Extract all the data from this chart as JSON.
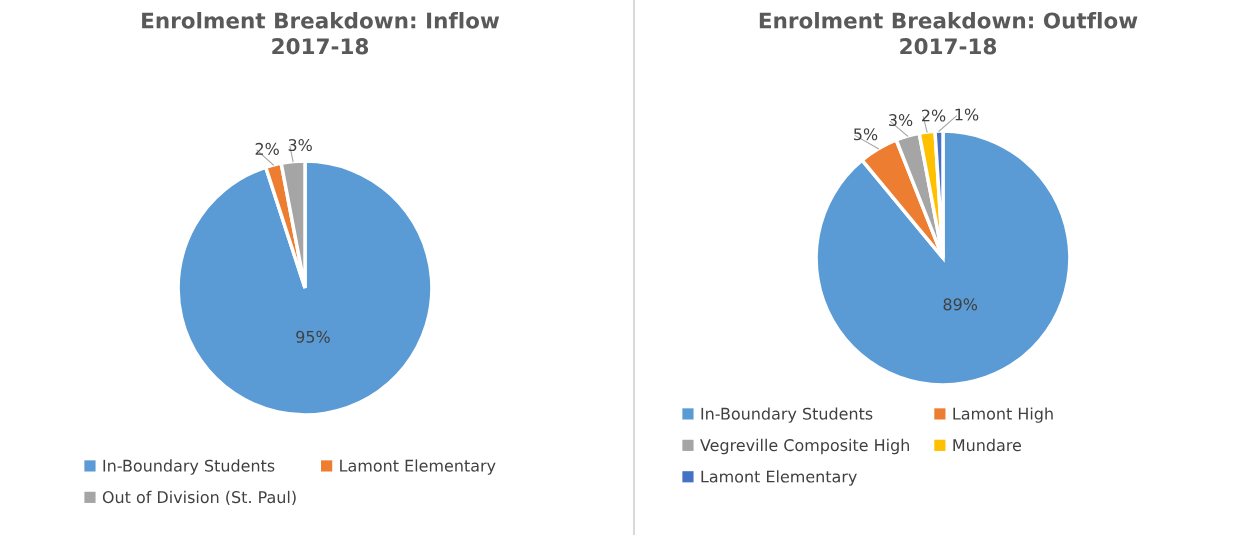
{
  "chart_data": [
    {
      "type": "pie",
      "title": "Enrolment Breakdown: Inflow\n2017-18",
      "categories": [
        "In-Boundary Students",
        "Lamont Elementary",
        "Out of Division (St. Paul)"
      ],
      "values": [
        95,
        2,
        3
      ],
      "value_labels": [
        "95%",
        "2%",
        "3%"
      ],
      "colors": [
        "#5b9bd5",
        "#ed7d31",
        "#a5a5a5"
      ],
      "legend": "bottom"
    },
    {
      "type": "pie",
      "title": "Enrolment Breakdown: Outflow\n2017-18",
      "categories": [
        "In-Boundary Students",
        "Lamont High",
        "Vegreville Composite High",
        "Mundare",
        "Lamont Elementary"
      ],
      "values": [
        89,
        5,
        3,
        2,
        1
      ],
      "value_labels": [
        "89%",
        "5%",
        "3%",
        "2%",
        "1%"
      ],
      "colors": [
        "#5b9bd5",
        "#ed7d31",
        "#a5a5a5",
        "#ffc000",
        "#4472c4"
      ],
      "legend": "bottom"
    }
  ]
}
